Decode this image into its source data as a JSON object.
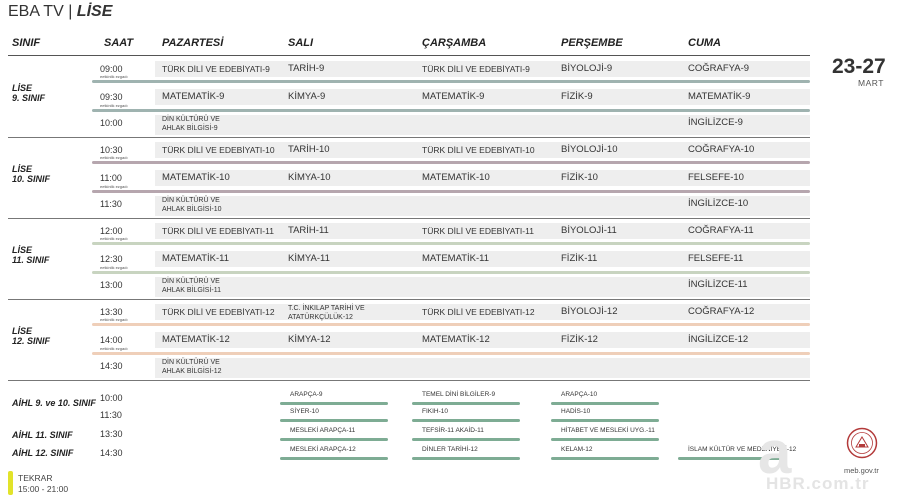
{
  "title": {
    "prefix": "EBA TV",
    "sep": "|",
    "main": "LİSE"
  },
  "headers": {
    "sinif": "SINIF",
    "saat": "SAAT",
    "mon": "PAZARTESİ",
    "tue": "SALI",
    "wed": "ÇARŞAMBA",
    "thu": "PERŞEMBE",
    "fri": "CUMA"
  },
  "date": {
    "range": "23-27",
    "month": "MART"
  },
  "break_label": "eetkinlik ezgadı",
  "groups": [
    {
      "label1": "LİSE",
      "label2": "9. SINIF",
      "color": "#9fb3b0",
      "rows": [
        {
          "time": "09:00",
          "mon": "TÜRK DİLİ VE EDEBİYATI-9",
          "tue": "TARİH-9",
          "wed": "TÜRK DİLİ VE EDEBİYATI-9",
          "thu": "BİYOLOJİ-9",
          "fri": "COĞRAFYA-9"
        },
        {
          "time": "09:30",
          "mon": "MATEMATİK-9",
          "tue": "KİMYA-9",
          "wed": "MATEMATİK-9",
          "thu": "FİZİK-9",
          "fri": "MATEMATİK-9"
        },
        {
          "time": "10:00",
          "mon1": "DİN KÜLTÜRÜ VE",
          "mon2": "AHLAK BİLGİSİ-9",
          "fri": "İNGİLİZCE-9"
        }
      ]
    },
    {
      "label1": "LİSE",
      "label2": "10. SINIF",
      "color": "#b6a6ae",
      "rows": [
        {
          "time": "10:30",
          "mon": "TÜRK DİLİ VE EDEBİYATI-10",
          "tue": "TARİH-10",
          "wed": "TÜRK DİLİ VE EDEBİYATI-10",
          "thu": "BİYOLOJİ-10",
          "fri": "COĞRAFYA-10"
        },
        {
          "time": "11:00",
          "mon": "MATEMATİK-10",
          "tue": "KİMYA-10",
          "wed": "MATEMATİK-10",
          "thu": "FİZİK-10",
          "fri": "FELSEFE-10"
        },
        {
          "time": "11:30",
          "mon1": "DİN KÜLTÜRÜ VE",
          "mon2": "AHLAK BİLGİSİ-10",
          "fri": "İNGİLİZCE-10"
        }
      ]
    },
    {
      "label1": "LİSE",
      "label2": "11. SINIF",
      "color": "#c8d4c0",
      "rows": [
        {
          "time": "12:00",
          "mon": "TÜRK DİLİ VE EDEBİYATI-11",
          "tue": "TARİH-11",
          "wed": "TÜRK DİLİ VE EDEBİYATI-11",
          "thu": "BİYOLOJİ-11",
          "fri": "COĞRAFYA-11"
        },
        {
          "time": "12:30",
          "mon": "MATEMATİK-11",
          "tue": "KİMYA-11",
          "wed": "MATEMATİK-11",
          "thu": "FİZİK-11",
          "fri": "FELSEFE-11"
        },
        {
          "time": "13:00",
          "mon1": "DİN KÜLTÜRÜ VE",
          "mon2": "AHLAK BİLGİSİ-11",
          "fri": "İNGİLİZCE-11"
        }
      ]
    },
    {
      "label1": "LİSE",
      "label2": "12. SINIF",
      "color": "#efcfb9",
      "rows": [
        {
          "time": "13:30",
          "mon": "TÜRK DİLİ VE EDEBİYATI-12",
          "tue1": "T.C. İNKILAP TARİHİ VE",
          "tue2": "ATATÜRKÇÜLÜK-12",
          "wed": "TÜRK DİLİ VE EDEBİYATI-12",
          "thu": "BİYOLOJİ-12",
          "fri": "COĞRAFYA-12"
        },
        {
          "time": "14:00",
          "mon": "MATEMATİK-12",
          "tue": "KİMYA-12",
          "wed": "MATEMATİK-12",
          "thu": "FİZİK-12",
          "fri": "İNGİLİZCE-12"
        },
        {
          "time": "14:30",
          "mon1": "DİN KÜLTÜRÜ VE",
          "mon2": "AHLAK BİLGİSİ-12"
        }
      ]
    }
  ],
  "aihl": {
    "labels": [
      "AİHL 9. ve 10. SINIF",
      "AİHL 11. SINIF",
      "AİHL 12. SINIF"
    ],
    "bar_color": "#7eac94",
    "rows": [
      {
        "time": "10:00",
        "tue": "ARAPÇA-9",
        "wed": "TEMEL DİNİ BİLGİLER-9",
        "thu": "ARAPÇA-10",
        "fri": ""
      },
      {
        "time": "11:30",
        "tue": "SİYER-10",
        "wed": "FIKIH-10",
        "thu": "HADİS-10",
        "fri": ""
      },
      {
        "time": "13:30",
        "tue": "MESLEKİ ARAPÇA-11",
        "wed": "TEFSİR-11  AKAİD-11",
        "thu": "HİTABET VE MESLEKİ UYG.-11",
        "fri": ""
      },
      {
        "time": "14:30",
        "tue": "MESLEKİ ARAPÇA-12",
        "wed": "DİNLER TARİHİ-12",
        "thu": "KELAM-12",
        "fri": "İSLAM KÜLTÜR VE MEDENİYETİ-12"
      }
    ]
  },
  "tekrar": {
    "label": "TEKRAR",
    "time": "15:00 - 21:00"
  },
  "watermark": {
    "letter": "a",
    "brand": "HBR.com.tr"
  },
  "meb": {
    "site": "meb.gov.tr"
  }
}
